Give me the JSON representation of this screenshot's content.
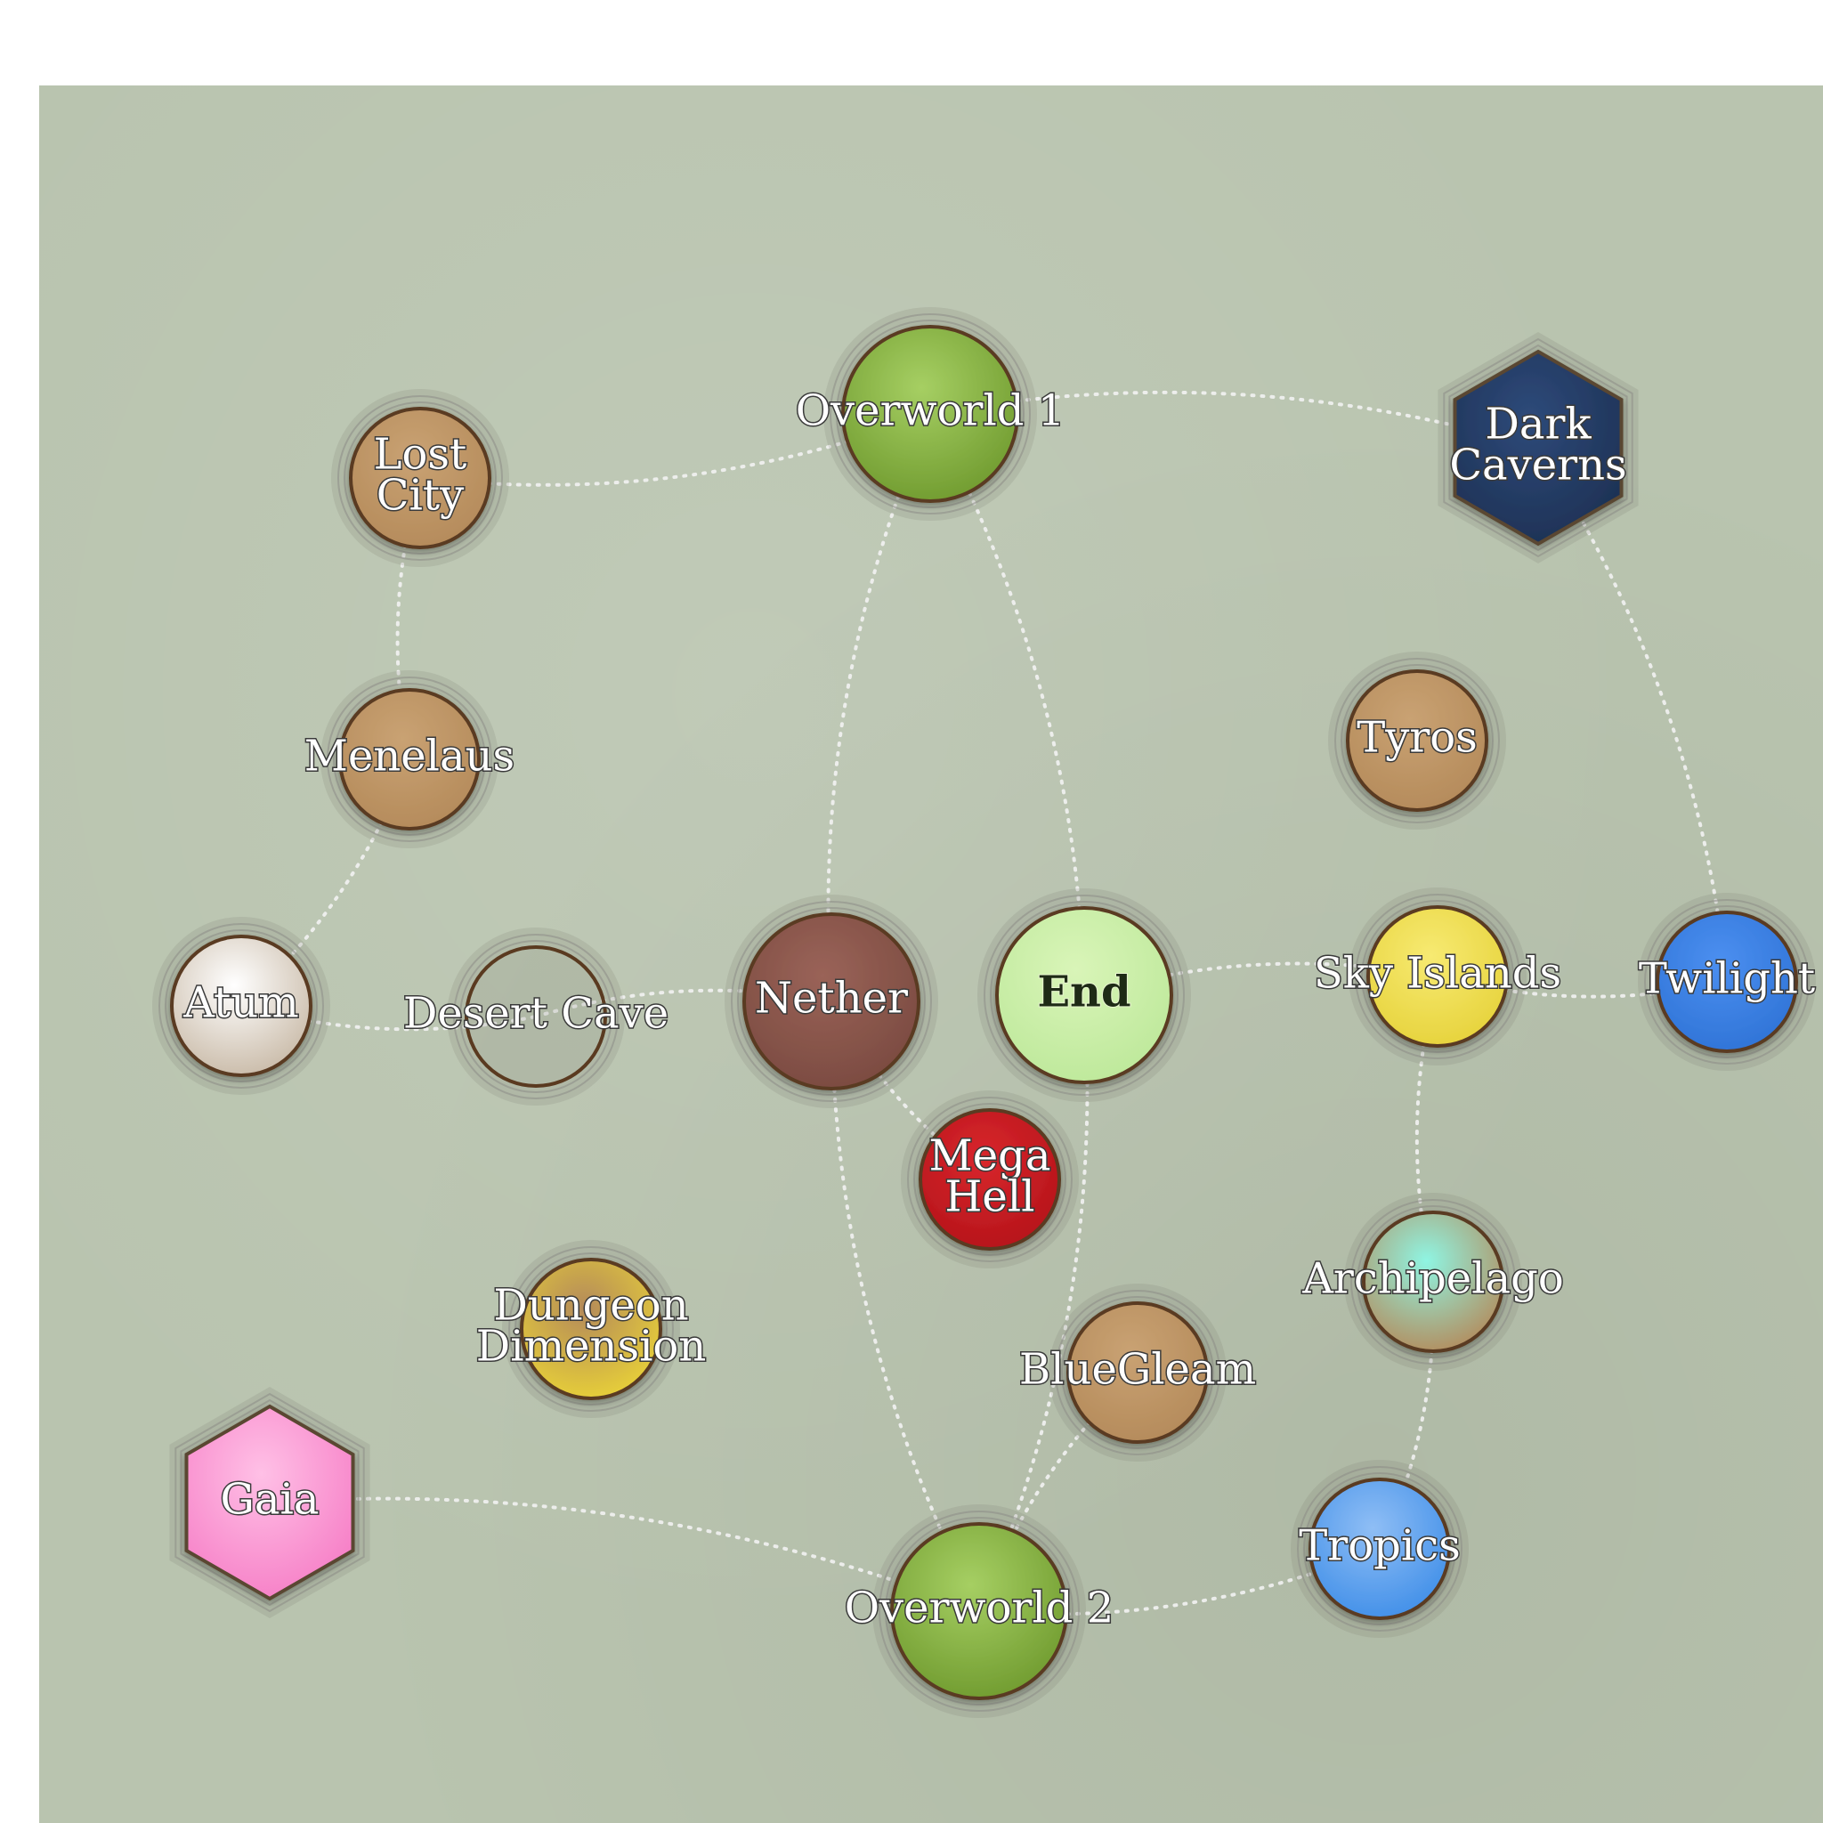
{
  "diagram": {
    "nodes": [
      {
        "id": "overworld1",
        "label": [
          "Overworld 1"
        ],
        "shape": "circle",
        "fill": "#6f9a2e",
        "fill_light": "#a6cf63"
      },
      {
        "id": "lostcity",
        "label": [
          "Lost",
          "City"
        ],
        "shape": "circle",
        "fill": "#b48a5a",
        "fill_light": "#c9a273"
      },
      {
        "id": "darkcaverns",
        "label": [
          "Dark",
          "Caverns"
        ],
        "shape": "hexagon",
        "fill": "#1d3154",
        "fill_light": "#2e4a7a"
      },
      {
        "id": "menelaus",
        "label": [
          "Menelaus"
        ],
        "shape": "circle",
        "fill": "#b48a5a",
        "fill_light": "#c9a273"
      },
      {
        "id": "tyros",
        "label": [
          "Tyros"
        ],
        "shape": "circle",
        "fill": "#b48a5a",
        "fill_light": "#c9a273"
      },
      {
        "id": "atum",
        "label": [
          "Atum"
        ],
        "shape": "circle",
        "fill": "#c8b9a6",
        "fill_light": "#ffffff"
      },
      {
        "id": "desertcave",
        "label": [
          "Desert Cave"
        ],
        "shape": "circle",
        "fill": "none",
        "fill_light": "none"
      },
      {
        "id": "nether",
        "label": [
          "Nether"
        ],
        "shape": "circle",
        "fill": "#7a4a40",
        "fill_light": "#9a6358"
      },
      {
        "id": "end",
        "label": [
          "End"
        ],
        "shape": "circle",
        "fill": "#bde89a",
        "fill_light": "#d9f5b8",
        "dark_label": true
      },
      {
        "id": "skyislands",
        "label": [
          "Sky Islands"
        ],
        "shape": "circle",
        "fill": "#e6d23a",
        "fill_light": "#f7ea72"
      },
      {
        "id": "twilight",
        "label": [
          "Twilight"
        ],
        "shape": "circle",
        "fill": "#2f73d6",
        "fill_light": "#4b8ff0"
      },
      {
        "id": "megahell",
        "label": [
          "Mega",
          "Hell"
        ],
        "shape": "circle",
        "fill": "#b5141a",
        "fill_light": "#d8262c"
      },
      {
        "id": "dungeon",
        "label": [
          "Dungeon",
          "Dimension"
        ],
        "shape": "circle",
        "fill": "#e9d237",
        "fill_light": "#b48a5a"
      },
      {
        "id": "archipelago",
        "label": [
          "Archipelago"
        ],
        "shape": "circle",
        "fill": "#b48a5a",
        "fill_light": "#8ff5e3"
      },
      {
        "id": "bluegleam",
        "label": [
          "BlueGleam"
        ],
        "shape": "circle",
        "fill": "#b48a5a",
        "fill_light": "#c9a273"
      },
      {
        "id": "gaia",
        "label": [
          "Gaia"
        ],
        "shape": "hexagon",
        "fill": "#f67ec6",
        "fill_light": "#ffc0e6"
      },
      {
        "id": "tropics",
        "label": [
          "Tropics"
        ],
        "shape": "circle",
        "fill": "#3f8ee8",
        "fill_light": "#8fbef5"
      },
      {
        "id": "overworld2",
        "label": [
          "Overworld 2"
        ],
        "shape": "circle",
        "fill": "#6f9a2e",
        "fill_light": "#a6cf63"
      }
    ],
    "edges": [
      [
        "lostcity",
        "overworld1"
      ],
      [
        "overworld1",
        "darkcaverns"
      ],
      [
        "lostcity",
        "menelaus"
      ],
      [
        "menelaus",
        "atum"
      ],
      [
        "atum",
        "desertcave"
      ],
      [
        "desertcave",
        "nether"
      ],
      [
        "overworld1",
        "nether"
      ],
      [
        "overworld1",
        "end"
      ],
      [
        "nether",
        "megahell"
      ],
      [
        "end",
        "skyislands"
      ],
      [
        "skyislands",
        "twilight"
      ],
      [
        "darkcaverns",
        "twilight"
      ],
      [
        "skyislands",
        "archipelago"
      ],
      [
        "archipelago",
        "tropics"
      ],
      [
        "nether",
        "overworld2"
      ],
      [
        "end",
        "overworld2"
      ],
      [
        "bluegleam",
        "overworld2"
      ],
      [
        "gaia",
        "overworld2"
      ],
      [
        "overworld2",
        "tropics"
      ]
    ]
  }
}
